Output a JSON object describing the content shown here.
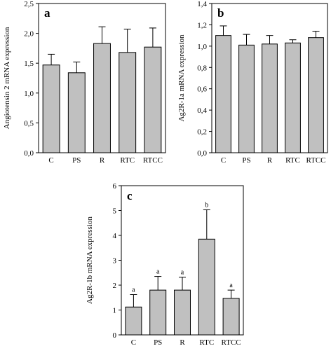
{
  "chart_data": [
    {
      "type": "bar",
      "panel_label": "a",
      "categories": [
        "C",
        "PS",
        "R",
        "RTC",
        "RTCC"
      ],
      "values": [
        1.47,
        1.34,
        1.83,
        1.68,
        1.77
      ],
      "errors": [
        0.18,
        0.18,
        0.28,
        0.39,
        0.32
      ],
      "significance": [],
      "ylabel": "Angiotensin 2 mRNA expression",
      "ylim": [
        0,
        2.5
      ],
      "yticks": [
        "0,0",
        "0,5",
        "1,0",
        "1,5",
        "2,0",
        "2,5"
      ],
      "ytick_values": [
        0,
        0.5,
        1.0,
        1.5,
        2.0,
        2.5
      ],
      "bar_color": "#c0c0c0",
      "grid": false
    },
    {
      "type": "bar",
      "panel_label": "b",
      "categories": [
        "C",
        "PS",
        "R",
        "RTC",
        "RTCC"
      ],
      "values": [
        1.1,
        1.01,
        1.02,
        1.03,
        1.08
      ],
      "errors": [
        0.09,
        0.1,
        0.08,
        0.03,
        0.06
      ],
      "significance": [],
      "ylabel": "Ag2R-1a mRNA expression",
      "ylim": [
        0,
        1.4
      ],
      "yticks": [
        "0,0",
        "0,2",
        "0,4",
        "0,6",
        "0,8",
        "1,0",
        "1,2",
        "1,4"
      ],
      "ytick_values": [
        0,
        0.2,
        0.4,
        0.6,
        0.8,
        1.0,
        1.2,
        1.4
      ],
      "bar_color": "#c0c0c0",
      "grid": false
    },
    {
      "type": "bar",
      "panel_label": "c",
      "categories": [
        "C",
        "PS",
        "R",
        "RTC",
        "RTCC"
      ],
      "values": [
        1.12,
        1.8,
        1.8,
        3.85,
        1.47
      ],
      "errors": [
        0.5,
        0.55,
        0.52,
        1.18,
        0.33
      ],
      "significance": [
        "a",
        "a",
        "a",
        "b",
        "a"
      ],
      "ylabel": "Ag2R-1b mRNA expression",
      "ylim": [
        0,
        6
      ],
      "yticks": [
        "0",
        "1",
        "2",
        "3",
        "4",
        "5",
        "6"
      ],
      "ytick_values": [
        0,
        1,
        2,
        3,
        4,
        5,
        6
      ],
      "bar_color": "#c0c0c0",
      "grid": false
    }
  ]
}
